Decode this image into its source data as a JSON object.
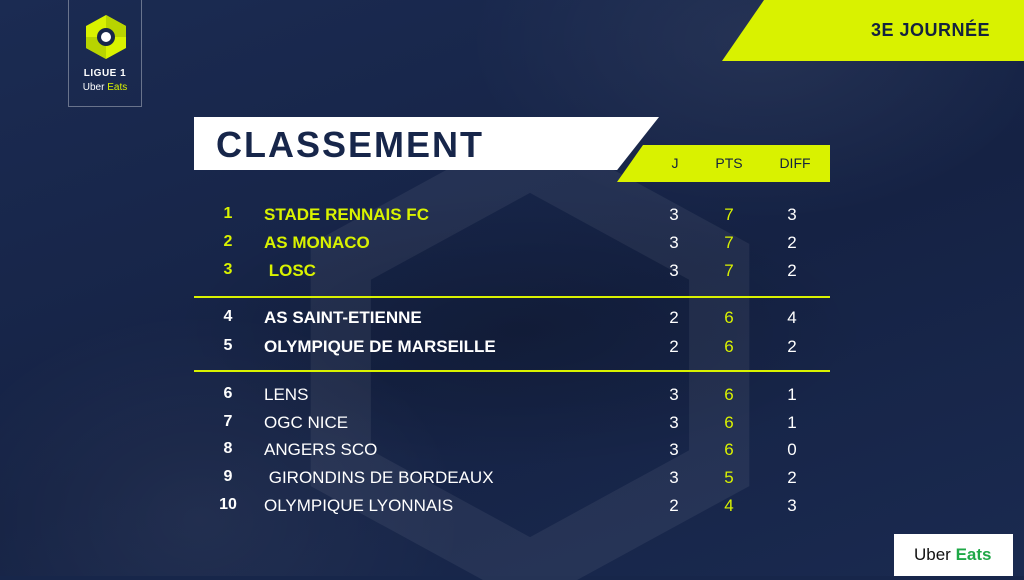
{
  "branding": {
    "league_line1": "LIGUE 1",
    "sponsor_uber": "Uber",
    "sponsor_eats": "Eats",
    "accent_color": "#d9f200",
    "background_color": "#17264a"
  },
  "journee": "3E JOURNÉE",
  "title": "CLASSEMENT",
  "headers": {
    "j": "J",
    "pts": "PTS",
    "diff": "DIFF"
  },
  "standings": [
    {
      "rank": "1",
      "team": "STADE RENNAIS FC",
      "j": "3",
      "pts": "7",
      "diff": "3"
    },
    {
      "rank": "2",
      "team": "AS MONACO",
      "j": "3",
      "pts": "7",
      "diff": "2"
    },
    {
      "rank": "3",
      "team": " LOSC",
      "j": "3",
      "pts": "7",
      "diff": "2"
    },
    {
      "rank": "4",
      "team": "AS SAINT-ETIENNE",
      "j": "2",
      "pts": "6",
      "diff": "4"
    },
    {
      "rank": "5",
      "team": "OLYMPIQUE DE MARSEILLE",
      "j": "2",
      "pts": "6",
      "diff": "2"
    },
    {
      "rank": "6",
      "team": "LENS",
      "j": "3",
      "pts": "6",
      "diff": "1"
    },
    {
      "rank": "7",
      "team": "OGC NICE",
      "j": "3",
      "pts": "6",
      "diff": "1"
    },
    {
      "rank": "8",
      "team": "ANGERS SCO",
      "j": "3",
      "pts": "6",
      "diff": "0"
    },
    {
      "rank": "9",
      "team": " GIRONDINS DE BORDEAUX",
      "j": "3",
      "pts": "5",
      "diff": "2"
    },
    {
      "rank": "10",
      "team": "OLYMPIQUE LYONNAIS",
      "j": "2",
      "pts": "4",
      "diff": "3"
    }
  ],
  "badge": {
    "uber": "Uber",
    "eats": "Eats"
  }
}
